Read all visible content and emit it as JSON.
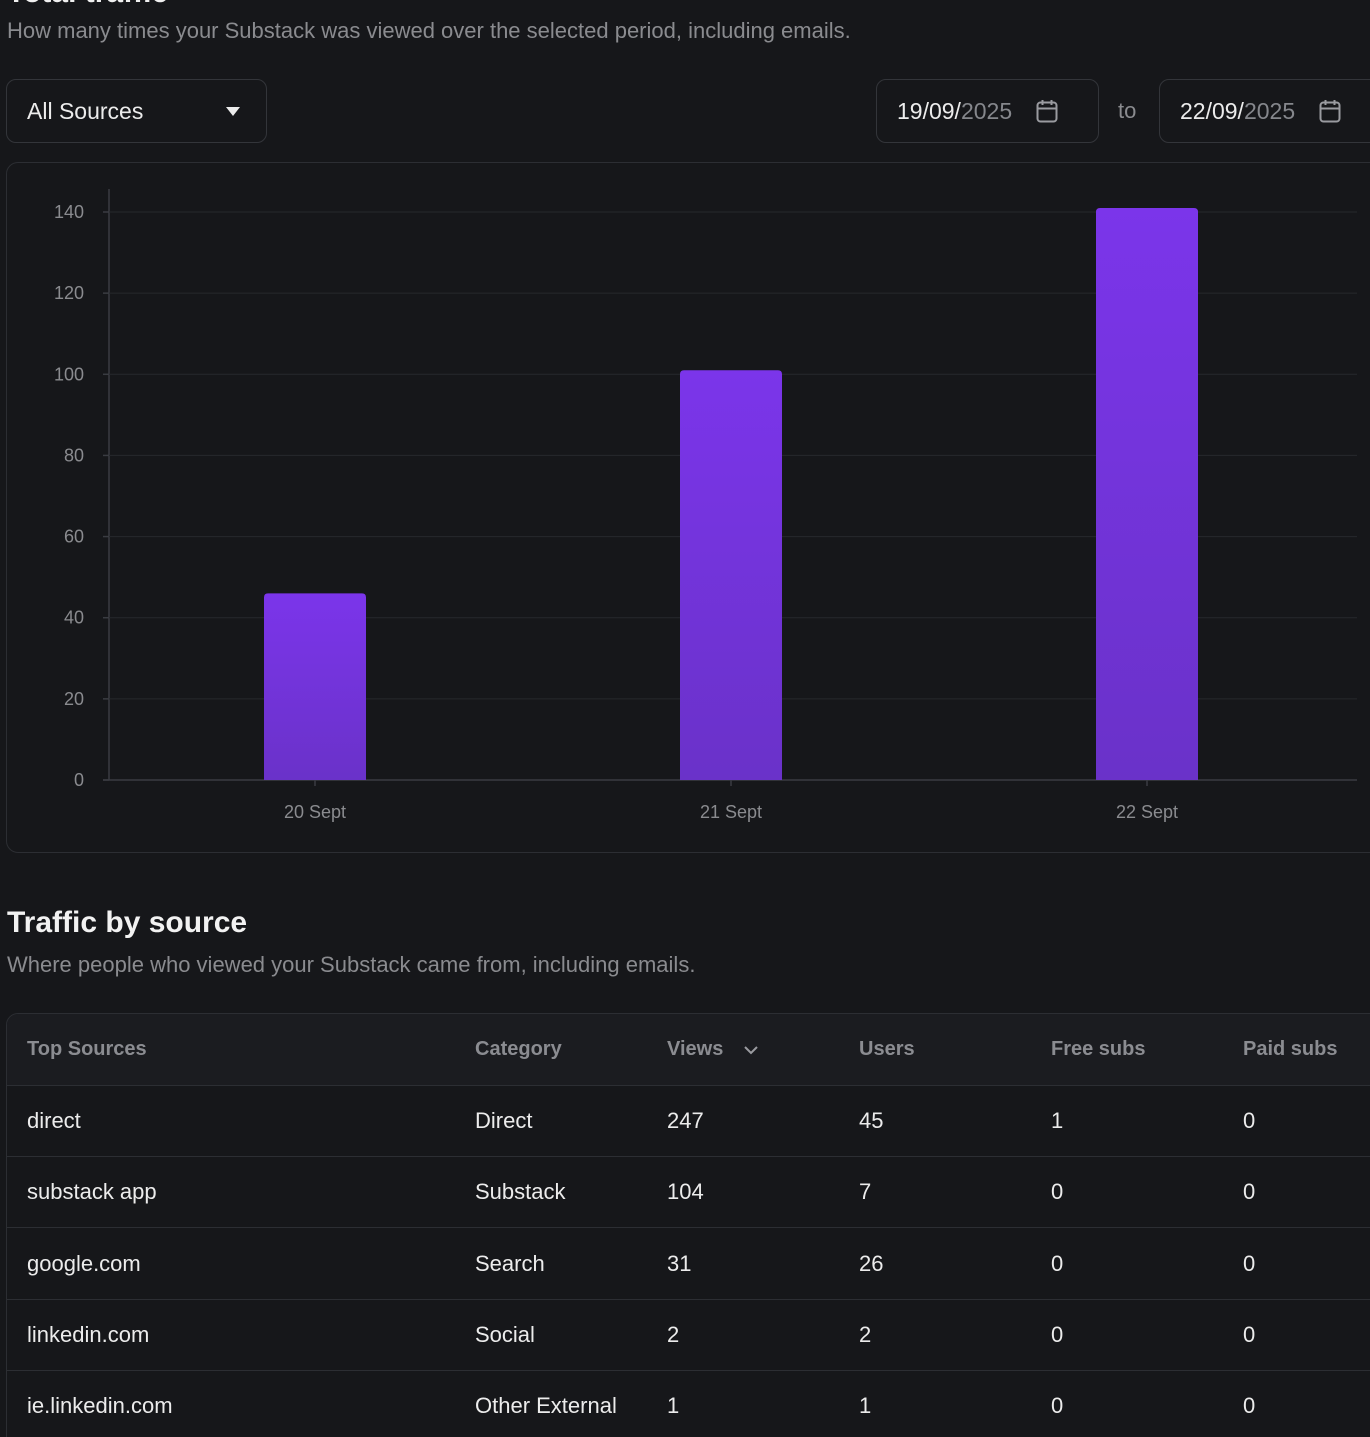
{
  "total_traffic": {
    "title": "Total traffic",
    "subtitle": "How many times your Substack was viewed over the selected period, including emails.",
    "source_filter": "All Sources",
    "date_from": {
      "day_month": "19/09/",
      "year": "2025"
    },
    "to_label": "to",
    "date_to": {
      "day_month": "22/09/",
      "year": "2025"
    }
  },
  "chart_data": {
    "type": "bar",
    "categories": [
      "20 Sept",
      "21 Sept",
      "22 Sept"
    ],
    "values": [
      46,
      101,
      141
    ],
    "title": "",
    "xlabel": "",
    "ylabel": "",
    "ylim": [
      0,
      140
    ],
    "yticks": [
      0,
      20,
      40,
      60,
      80,
      100,
      120,
      140
    ],
    "grid": true,
    "bar_color_top": "#7b35ea",
    "bar_color_bottom": "#6a32c9"
  },
  "traffic_by_source": {
    "title": "Traffic by source",
    "subtitle": "Where people who viewed your Substack came from, including emails.",
    "columns": [
      "Top Sources",
      "Category",
      "Views",
      "Users",
      "Free subs",
      "Paid subs"
    ],
    "rows": [
      [
        "direct",
        "Direct",
        "247",
        "45",
        "1",
        "0"
      ],
      [
        "substack app",
        "Substack",
        "104",
        "7",
        "0",
        "0"
      ],
      [
        "google.com",
        "Search",
        "31",
        "26",
        "0",
        "0"
      ],
      [
        "linkedin.com",
        "Social",
        "2",
        "2",
        "0",
        "0"
      ],
      [
        "ie.linkedin.com",
        "Other External",
        "1",
        "1",
        "0",
        "0"
      ]
    ]
  }
}
